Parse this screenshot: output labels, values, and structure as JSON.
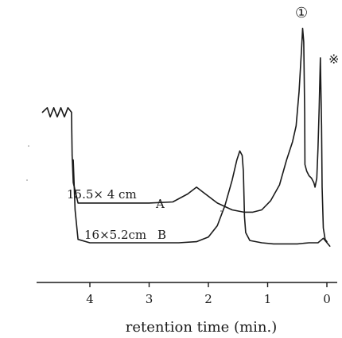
{
  "chart_data": {
    "type": "line",
    "title": "",
    "xlabel": "retention time (min.)",
    "ylabel": "",
    "x_reversed": true,
    "xlim": [
      4.8,
      0
    ],
    "ylim": [
      0,
      100
    ],
    "grid": false,
    "xticks": [
      {
        "value": 4,
        "label": "4"
      },
      {
        "value": 3,
        "label": "3"
      },
      {
        "value": 2,
        "label": "2"
      },
      {
        "value": 1,
        "label": "1"
      },
      {
        "value": 0,
        "label": "0"
      }
    ],
    "series": [
      {
        "label": "A",
        "column_label": "15.5× 4 cm",
        "points": [
          [
            4.3,
            42
          ],
          [
            4.28,
            30
          ],
          [
            4.2,
            21
          ],
          [
            3.9,
            21
          ],
          [
            3.5,
            21
          ],
          [
            3.0,
            21
          ],
          [
            2.6,
            21.5
          ],
          [
            2.35,
            25
          ],
          [
            2.2,
            28
          ],
          [
            2.05,
            25
          ],
          [
            1.85,
            21
          ],
          [
            1.6,
            18
          ],
          [
            1.4,
            17
          ],
          [
            1.25,
            17
          ],
          [
            1.1,
            18
          ],
          [
            0.95,
            22
          ],
          [
            0.8,
            29
          ],
          [
            0.68,
            40
          ],
          [
            0.58,
            48
          ],
          [
            0.52,
            55
          ],
          [
            0.47,
            70
          ],
          [
            0.43,
            88
          ],
          [
            0.41,
            98
          ],
          [
            0.39,
            92
          ],
          [
            0.375,
            60
          ],
          [
            0.37,
            38
          ],
          [
            0.34,
            35
          ],
          [
            0.3,
            33
          ],
          [
            0.26,
            32
          ],
          [
            0.22,
            30
          ],
          [
            0.2,
            28
          ],
          [
            0.17,
            32
          ],
          [
            0.15,
            45
          ],
          [
            0.13,
            63
          ],
          [
            0.11,
            85
          ],
          [
            0.09,
            55
          ],
          [
            0.08,
            28
          ],
          [
            0.06,
            10
          ],
          [
            0.03,
            5
          ],
          [
            0.0,
            4
          ]
        ]
      },
      {
        "label": "B",
        "column_label": "16×5.2cm",
        "points": [
          [
            4.28,
            40
          ],
          [
            4.25,
            18
          ],
          [
            4.2,
            5
          ],
          [
            4.0,
            3.5
          ],
          [
            3.5,
            3.5
          ],
          [
            3.0,
            3.5
          ],
          [
            2.5,
            3.5
          ],
          [
            2.2,
            4
          ],
          [
            2.0,
            6
          ],
          [
            1.85,
            11
          ],
          [
            1.72,
            20
          ],
          [
            1.6,
            31
          ],
          [
            1.52,
            40
          ],
          [
            1.47,
            44
          ],
          [
            1.43,
            42
          ],
          [
            1.41,
            35
          ],
          [
            1.39,
            15
          ],
          [
            1.37,
            8
          ],
          [
            1.3,
            4.5
          ],
          [
            1.1,
            3.5
          ],
          [
            0.9,
            3
          ],
          [
            0.7,
            3
          ],
          [
            0.5,
            3
          ],
          [
            0.3,
            3.5
          ],
          [
            0.15,
            3.5
          ],
          [
            0.06,
            5.5
          ],
          [
            0.03,
            4.5
          ],
          [
            -0.05,
            2
          ]
        ]
      }
    ],
    "pre_injection_zigzag": [
      [
        4.8,
        61
      ],
      [
        4.72,
        63
      ],
      [
        4.67,
        59
      ],
      [
        4.61,
        63
      ],
      [
        4.55,
        59
      ],
      [
        4.49,
        63
      ],
      [
        4.43,
        59
      ],
      [
        4.37,
        63
      ],
      [
        4.31,
        61
      ],
      [
        4.3,
        42
      ]
    ],
    "annotations": [
      {
        "text": "①",
        "x": 0.4,
        "y": 100,
        "meaning": "peak 1 marker"
      },
      {
        "text": "※",
        "x": 0.12,
        "y": 90,
        "meaning": "solvent peak marker"
      }
    ]
  }
}
